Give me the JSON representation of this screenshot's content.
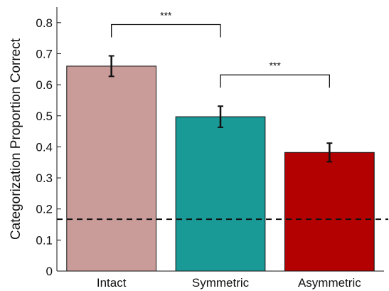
{
  "chart_data": {
    "type": "bar",
    "title": "",
    "xlabel": "",
    "ylabel": "Categorization Proportion Correct",
    "ylim": [
      0,
      0.85
    ],
    "yticks": [
      0,
      0.1,
      0.2,
      0.3,
      0.4,
      0.5,
      0.6,
      0.7,
      0.8
    ],
    "ytick_labels": [
      "0",
      "0.1",
      "0.2",
      "0.3",
      "0.4",
      "0.5",
      "0.6",
      "0.7",
      "0.8"
    ],
    "grid": false,
    "legend": "none",
    "categories": [
      "Intact",
      "Symmetric",
      "Asymmetric"
    ],
    "values": [
      0.66,
      0.497,
      0.382
    ],
    "errors": [
      0.033,
      0.034,
      0.03
    ],
    "colors": [
      "#c99b99",
      "#1a9a96",
      "#b30000"
    ],
    "chance_level": 0.167,
    "significance": [
      {
        "from": 0,
        "to": 1,
        "label": "***"
      },
      {
        "from": 1,
        "to": 2,
        "label": "***"
      }
    ]
  }
}
